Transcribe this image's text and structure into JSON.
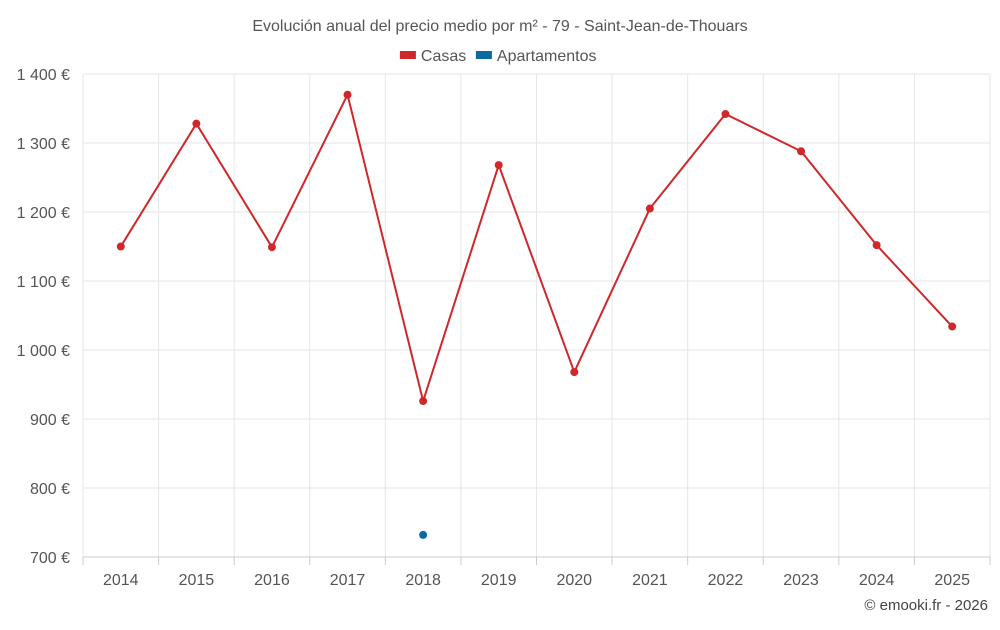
{
  "chart_data": {
    "type": "line",
    "title": "Evolución anual del precio medio por m² - 79 - Saint-Jean-de-Thouars",
    "categories": [
      "2014",
      "2015",
      "2016",
      "2017",
      "2018",
      "2019",
      "2020",
      "2021",
      "2022",
      "2023",
      "2024",
      "2025"
    ],
    "series": [
      {
        "name": "Casas",
        "color": "#d0272a",
        "values": [
          1150,
          1328,
          1149,
          1370,
          926,
          1268,
          968,
          1205,
          1342,
          1288,
          1152,
          1034
        ]
      },
      {
        "name": "Apartamentos",
        "color": "#0a6aa1",
        "values": [
          null,
          null,
          null,
          null,
          732,
          null,
          null,
          null,
          null,
          null,
          null,
          null
        ]
      }
    ],
    "ylim": [
      700,
      1400
    ],
    "yticks": [
      700,
      800,
      900,
      1000,
      1100,
      1200,
      1300,
      1400
    ],
    "ytick_labels": [
      "700 €",
      "800 €",
      "900 €",
      "1 000 €",
      "1 100 €",
      "1 200 €",
      "1 300 €",
      "1 400 €"
    ],
    "grid": true,
    "legend_position": "top-center",
    "credit": "© emooki.fr - 2026"
  }
}
